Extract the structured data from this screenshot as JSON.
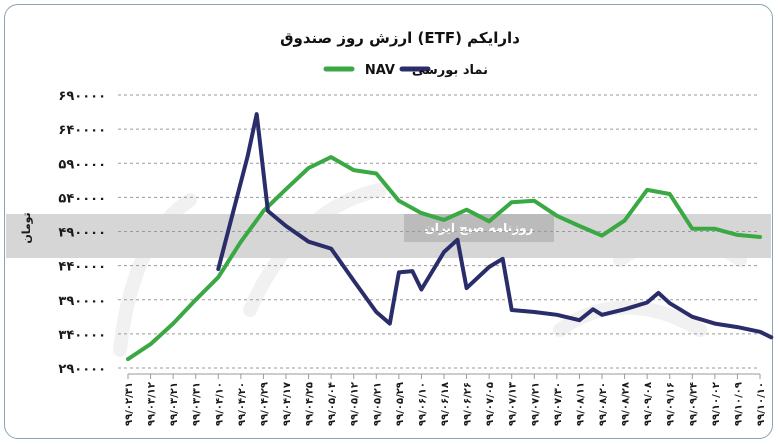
{
  "chart_data": {
    "type": "line",
    "title": "ارزش روز صندوق (ETF) دارایکم",
    "ylabel": "تومان",
    "xlabel": "",
    "ylim": [
      290000,
      690000
    ],
    "yticks": [
      290000,
      340000,
      390000,
      440000,
      490000,
      540000,
      590000,
      640000,
      690000
    ],
    "ytick_labels": [
      "۲۹۰۰۰۰",
      "۳۴۰۰۰۰",
      "۳۹۰۰۰۰",
      "۴۴۰۰۰۰",
      "۴۹۰۰۰۰",
      "۵۴۰۰۰۰",
      "۵۹۰۰۰۰",
      "۶۴۰۰۰۰",
      "۶۹۰۰۰۰"
    ],
    "grid": true,
    "legend_position": "top-center",
    "categories": [
      "۹۹/۰۲/۳۱",
      "۹۹/۰۳/۱۲",
      "۹۹/۰۳/۲۱",
      "۹۹/۰۳/۳۱",
      "۹۹/۰۴/۱۰",
      "۹۹/۰۴/۲۰",
      "۹۹/۰۴/۲۹",
      "۹۹/۰۴/۱۷",
      "۹۹/۰۴/۲۵",
      "۹۹/۰۵/۰۴",
      "۹۹/۰۵/۱۲",
      "۹۹/۰۵/۲۱",
      "۹۹/۰۵/۲۹",
      "۹۹/۰۶/۱۰",
      "۹۹/۰۶/۱۸",
      "۹۹/۰۶/۲۶",
      "۹۹/۰۷/۰۵",
      "۹۹/۰۷/۱۳",
      "۹۹/۰۷/۲۱",
      "۹۹/۰۷/۳۰",
      "۹۹/۰۸/۱۱",
      "۹۹/۰۸/۲۰",
      "۹۹/۰۸/۲۸",
      "۹۹/۰۹/۰۸",
      "۹۹/۰۹/۱۶",
      "۹۹/۰۹/۲۴",
      "۹۹/۱۰/۰۲",
      "۹۹/۱۰/۰۹",
      "۹۹/۱۰/۱۰"
    ],
    "series": [
      {
        "name": "NAV",
        "color": "#3aa843",
        "values": [
          303000,
          325000,
          355000,
          390000,
          423000,
          475000,
          520000,
          552000,
          583000,
          599000,
          580000,
          575000,
          535000,
          517000,
          507000,
          522000,
          505000,
          533000,
          535000,
          513000,
          498000,
          484000,
          506000,
          551000,
          545000,
          494000,
          494000,
          485000,
          482000
        ]
      },
      {
        "name": "نماد بورسی",
        "color": "#2a2d69",
        "values": null,
        "points": [
          [
            0,
            null
          ],
          [
            4,
            435000
          ],
          [
            5.3,
            600000
          ],
          [
            5.7,
            662000
          ],
          [
            6.2,
            520000
          ],
          [
            7,
            498000
          ],
          [
            8,
            475000
          ],
          [
            9,
            465000
          ],
          [
            10,
            418000
          ],
          [
            11,
            372000
          ],
          [
            11.6,
            355000
          ],
          [
            12,
            430000
          ],
          [
            12.6,
            432000
          ],
          [
            13,
            405000
          ],
          [
            14,
            460000
          ],
          [
            14.6,
            478000
          ],
          [
            15,
            407000
          ],
          [
            16,
            438000
          ],
          [
            16.6,
            450000
          ],
          [
            17,
            375000
          ],
          [
            18,
            372000
          ],
          [
            19,
            368000
          ],
          [
            20,
            360000
          ],
          [
            20.6,
            376000
          ],
          [
            21,
            368000
          ],
          [
            22,
            376000
          ],
          [
            23,
            386000
          ],
          [
            23.5,
            400000
          ],
          [
            24,
            385000
          ],
          [
            25,
            365000
          ],
          [
            26,
            355000
          ],
          [
            27,
            350000
          ],
          [
            28,
            343000
          ],
          [
            28.5,
            335000
          ]
        ]
      }
    ]
  },
  "watermark": {
    "small": "روزنامه صبح ایران"
  }
}
